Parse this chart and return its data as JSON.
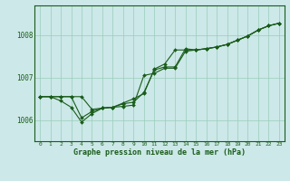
{
  "background_color": "#cce8e8",
  "grid_color": "#99ccbb",
  "line_color": "#1a5c1a",
  "marker_color": "#1a5c1a",
  "xlabel": "Graphe pression niveau de la mer (hPa)",
  "xlim": [
    -0.5,
    23.5
  ],
  "ylim": [
    1005.5,
    1008.7
  ],
  "yticks": [
    1006,
    1007,
    1008
  ],
  "xticks": [
    0,
    1,
    2,
    3,
    4,
    5,
    6,
    7,
    8,
    9,
    10,
    11,
    12,
    13,
    14,
    15,
    16,
    17,
    18,
    19,
    20,
    21,
    22,
    23
  ],
  "series": [
    [
      1006.55,
      1006.55,
      1006.55,
      1006.55,
      1006.55,
      1006.25,
      1006.28,
      1006.3,
      1006.32,
      1006.35,
      1007.05,
      1007.1,
      1007.22,
      1007.22,
      1007.62,
      1007.65,
      1007.68,
      1007.72,
      1007.78,
      1007.88,
      1007.98,
      1008.12,
      1008.22,
      1008.28
    ],
    [
      1006.55,
      1006.55,
      1006.45,
      1006.3,
      1005.95,
      1006.15,
      1006.28,
      1006.3,
      1006.38,
      1006.42,
      1006.65,
      1007.18,
      1007.25,
      1007.25,
      1007.68,
      1007.65,
      1007.68,
      1007.72,
      1007.78,
      1007.88,
      1007.98,
      1008.12,
      1008.22,
      1008.28
    ],
    [
      1006.55,
      1006.55,
      1006.55,
      1006.55,
      1006.05,
      1006.2,
      1006.28,
      1006.3,
      1006.4,
      1006.5,
      1006.62,
      1007.2,
      1007.32,
      1007.65,
      1007.65,
      1007.65,
      1007.68,
      1007.72,
      1007.78,
      1007.88,
      1007.98,
      1008.12,
      1008.22,
      1008.28
    ]
  ]
}
